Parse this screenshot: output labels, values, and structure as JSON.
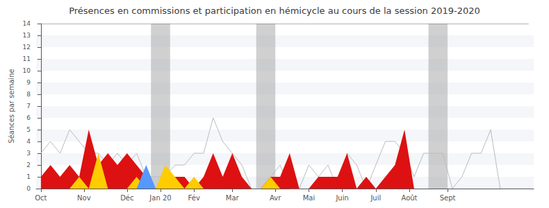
{
  "chart_data": {
    "type": "area",
    "title": "Présences en commissions et participation en hémicycle au cours de la session 2019-2020",
    "ylabel": "Séances par semaine",
    "x": [
      0,
      1,
      2,
      3,
      4,
      5,
      6,
      7,
      8,
      9,
      10,
      11,
      12,
      13,
      14,
      15,
      16,
      17,
      18,
      19,
      20,
      21,
      22,
      23,
      24,
      25,
      26,
      27,
      28,
      29,
      30,
      31,
      32,
      33,
      34,
      35,
      36,
      37,
      38,
      39,
      40,
      41,
      42,
      43,
      44,
      45,
      46,
      47,
      48,
      49,
      50,
      51
    ],
    "xlim": [
      -0.5,
      51.5
    ],
    "xticks": [
      {
        "value": 0,
        "label": "Oct"
      },
      {
        "value": 4.5,
        "label": "Nov"
      },
      {
        "value": 9,
        "label": "Déc"
      },
      {
        "value": 12.5,
        "label": "Jan 20"
      },
      {
        "value": 16,
        "label": "Fév"
      },
      {
        "value": 20,
        "label": "Mar"
      },
      {
        "value": 24.5,
        "label": "Avr"
      },
      {
        "value": 28,
        "label": "Mai"
      },
      {
        "value": 31.5,
        "label": "Juin"
      },
      {
        "value": 35,
        "label": "Juil"
      },
      {
        "value": 38.5,
        "label": "Août"
      },
      {
        "value": 42.5,
        "label": "Sept"
      }
    ],
    "ylim": [
      0,
      14
    ],
    "yticks": [
      0,
      1,
      2,
      3,
      4,
      5,
      6,
      7,
      8,
      9,
      10,
      11,
      12,
      13,
      14
    ],
    "grid": true,
    "stacked": false,
    "shaded_regions": [
      {
        "from": 11.5,
        "to": 13.5,
        "color": "#aaaaaa"
      },
      {
        "from": 22.5,
        "to": 24.5,
        "color": "#aaaaaa"
      },
      {
        "from": 40.5,
        "to": 42.5,
        "color": "#aaaaaa"
      }
    ],
    "series": [
      {
        "type": "line",
        "color": "#bbbbbb",
        "values": [
          3,
          4,
          3,
          5,
          4,
          3,
          3,
          2,
          3,
          2,
          3,
          1,
          1,
          1,
          2,
          2,
          3,
          3,
          6,
          4,
          3,
          2,
          0,
          0,
          1,
          2,
          0,
          0,
          2,
          1,
          2,
          0,
          3,
          2,
          0,
          2,
          4,
          4,
          3,
          1,
          3,
          3,
          3,
          0,
          1,
          3,
          3,
          5,
          0,
          0,
          0,
          0
        ]
      },
      {
        "type": "area",
        "color": "#dd1111",
        "values": [
          1,
          2,
          1,
          2,
          1,
          5,
          2,
          3,
          2,
          3,
          2,
          1,
          0,
          1,
          1,
          1,
          0,
          1,
          3,
          1,
          3,
          1,
          0,
          0,
          1,
          1,
          3,
          0,
          0,
          1,
          1,
          1,
          3,
          0,
          1,
          0,
          1,
          2,
          5,
          0,
          0,
          0,
          0,
          0,
          0,
          0,
          0,
          0,
          0,
          0,
          0,
          0
        ]
      },
      {
        "type": "area",
        "color": "#ffcc00",
        "values": [
          0,
          0,
          0,
          0,
          1,
          0,
          3,
          0,
          0,
          0,
          1,
          0,
          0,
          2,
          1,
          0,
          1,
          0,
          0,
          0,
          0,
          0,
          0,
          0,
          1,
          0,
          0,
          0,
          0,
          0,
          0,
          0,
          0,
          0,
          0,
          0,
          0,
          0,
          0,
          0,
          0,
          0,
          0,
          0,
          0,
          0,
          0,
          0,
          0,
          0,
          0,
          0
        ]
      },
      {
        "type": "area",
        "color": "#5599ff",
        "values": [
          0,
          0,
          0,
          0,
          0,
          0,
          0,
          0,
          0,
          0,
          0,
          2,
          0,
          0,
          0,
          0,
          0,
          0,
          0,
          0,
          0,
          0,
          0,
          0,
          0,
          0,
          0,
          0,
          0,
          0,
          0,
          0,
          0,
          0,
          0,
          0,
          0,
          0,
          0,
          0,
          0,
          0,
          0,
          0,
          0,
          0,
          0,
          0,
          0,
          0,
          0,
          0
        ]
      }
    ]
  }
}
